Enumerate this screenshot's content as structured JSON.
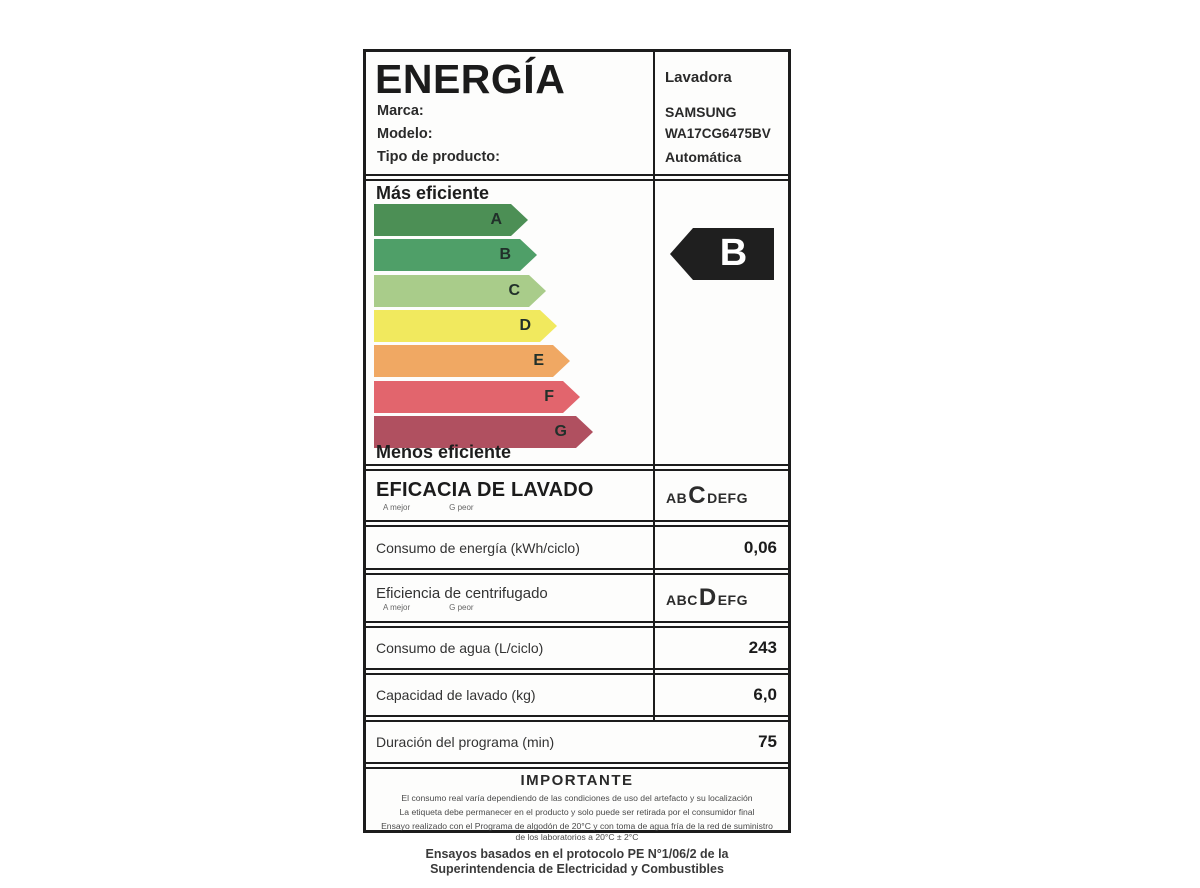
{
  "header": {
    "title": "ENERGÍA",
    "category": "Lavadora",
    "brand_label": "Marca:",
    "brand_value": "SAMSUNG",
    "model_label": "Modelo:",
    "model_value": "WA17CG6475BV",
    "type_label": "Tipo de producto:",
    "type_value": "Automática"
  },
  "scale": {
    "more_efficient": "Más eficiente",
    "less_efficient": "Menos eficiente",
    "classes": [
      {
        "letter": "A",
        "color": "#4c8f55"
      },
      {
        "letter": "B",
        "color": "#4f9f68"
      },
      {
        "letter": "C",
        "color": "#a9cc8a"
      },
      {
        "letter": "D",
        "color": "#f1e95e"
      },
      {
        "letter": "E",
        "color": "#f0a863"
      },
      {
        "letter": "F",
        "color": "#e2656d"
      },
      {
        "letter": "G",
        "color": "#b05060"
      }
    ],
    "rating": {
      "letter": "B",
      "color": "#1f1f1f"
    }
  },
  "rows": {
    "washing": {
      "label": "EFICACIA DE LAVADO",
      "best": "A mejor",
      "worst": "G peor",
      "before": "AB",
      "current": "C",
      "after": "DEFG"
    },
    "energy": {
      "label": "Consumo de energía (kWh/ciclo)",
      "value": "0,06"
    },
    "spin": {
      "label": "Eficiencia de centrifugado",
      "best": "A mejor",
      "worst": "G peor",
      "before": "ABC",
      "current": "D",
      "after": "EFG"
    },
    "water": {
      "label": "Consumo de agua (L/ciclo)",
      "value": "243"
    },
    "capacity": {
      "label": "Capacidad de lavado (kg)",
      "value": "6,0"
    },
    "duration": {
      "label": "Duración del programa (min)",
      "value": "75"
    }
  },
  "important": {
    "title": "IMPORTANTE",
    "line1": "El consumo real varía dependiendo de las condiciones de uso del artefacto y su localización",
    "line2": "La etiqueta debe permanecer en el producto y solo puede ser retirada por el consumidor final",
    "line3": "Ensayo realizado con el Programa de algodón de 20°C y con toma de agua fría de la red de suministro de los laboratorios a 20°C ± 2°C",
    "footer": "Ensayos basados en el protocolo PE N°1/06/2 de la Superintendencia de Electricidad y Combustibles"
  }
}
